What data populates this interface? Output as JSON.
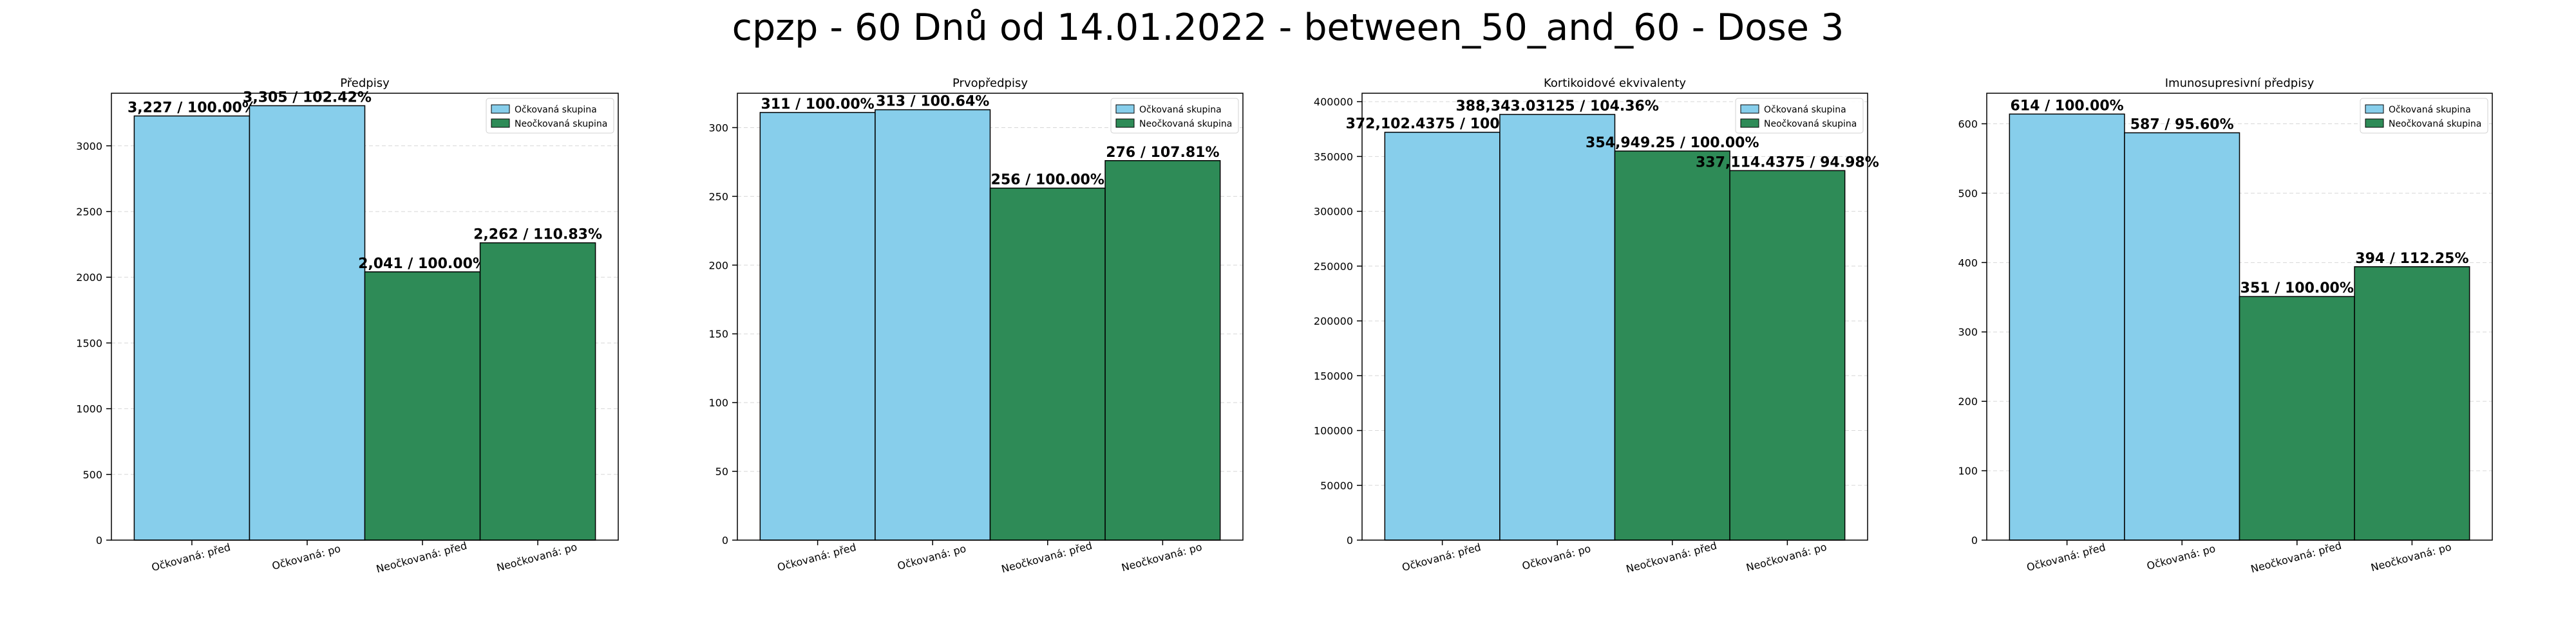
{
  "title": "cpzp - 60 Dnů od 14.01.2022 - between_50_and_60 - Dose 3",
  "colors": {
    "vaccinated": "#87CEEB",
    "unvaccinated": "#2E8B57"
  },
  "chart_data": [
    {
      "type": "bar",
      "title": "Předpisy",
      "categories": [
        "Očkovaná: před",
        "Očkovaná: po",
        "Neočkovaná: před",
        "Neočkovaná: po"
      ],
      "values": [
        3227,
        3305,
        2041,
        2262
      ],
      "data_labels": [
        "3,227 / 100.00%",
        "3,305 / 102.42%",
        "2,041 / 100.00%",
        "2,262 / 110.83%"
      ],
      "groups": [
        "vaccinated",
        "vaccinated",
        "unvaccinated",
        "unvaccinated"
      ],
      "ylim": [
        0,
        3400
      ],
      "yticks": [
        0,
        500,
        1000,
        1500,
        2000,
        2500,
        3000
      ],
      "legend": [
        "Očkovaná skupina",
        "Neočkovaná skupina"
      ],
      "legend_position": "top-right",
      "grid": true
    },
    {
      "type": "bar",
      "title": "Prvopředpisy",
      "categories": [
        "Očkovaná: před",
        "Očkovaná: po",
        "Neočkovaná: před",
        "Neočkovaná: po"
      ],
      "values": [
        311,
        313,
        256,
        276
      ],
      "data_labels": [
        "311 / 100.00%",
        "313 / 100.64%",
        "256 / 100.00%",
        "276 / 107.81%"
      ],
      "groups": [
        "vaccinated",
        "vaccinated",
        "unvaccinated",
        "unvaccinated"
      ],
      "ylim": [
        0,
        325
      ],
      "yticks": [
        0,
        50,
        100,
        150,
        200,
        250,
        300
      ],
      "legend": [
        "Očkovaná skupina",
        "Neočkovaná skupina"
      ],
      "legend_position": "top-right",
      "grid": true
    },
    {
      "type": "bar",
      "title": "Kortikoidové ekvivalenty",
      "categories": [
        "Očkovaná: před",
        "Očkovaná: po",
        "Neočkovaná: před",
        "Neočkovaná: po"
      ],
      "values": [
        372102.4375,
        388343.03125,
        354949.25,
        337114.4375
      ],
      "data_labels": [
        "372,102.4375 / 100.00%",
        "388,343.03125 / 104.36%",
        "354,949.25 / 100.00%",
        "337,114.4375 / 94.98%"
      ],
      "groups": [
        "vaccinated",
        "vaccinated",
        "unvaccinated",
        "unvaccinated"
      ],
      "ylim": [
        0,
        407700
      ],
      "yticks": [
        0,
        50000,
        100000,
        150000,
        200000,
        250000,
        300000,
        350000,
        400000
      ],
      "legend": [
        "Očkovaná skupina",
        "Neočkovaná skupina"
      ],
      "legend_position": "top-right",
      "grid": true
    },
    {
      "type": "bar",
      "title": "Imunosupresivní předpisy",
      "categories": [
        "Očkovaná: před",
        "Očkovaná: po",
        "Neočkovaná: před",
        "Neočkovaná: po"
      ],
      "values": [
        614,
        587,
        351,
        394
      ],
      "data_labels": [
        "614 / 100.00%",
        "587 / 95.60%",
        "351 / 100.00%",
        "394 / 112.25%"
      ],
      "groups": [
        "vaccinated",
        "vaccinated",
        "unvaccinated",
        "unvaccinated"
      ],
      "ylim": [
        0,
        644
      ],
      "yticks": [
        0,
        100,
        200,
        300,
        400,
        500,
        600
      ],
      "legend": [
        "Očkovaná skupina",
        "Neočkovaná skupina"
      ],
      "legend_position": "top-right",
      "grid": true
    }
  ]
}
